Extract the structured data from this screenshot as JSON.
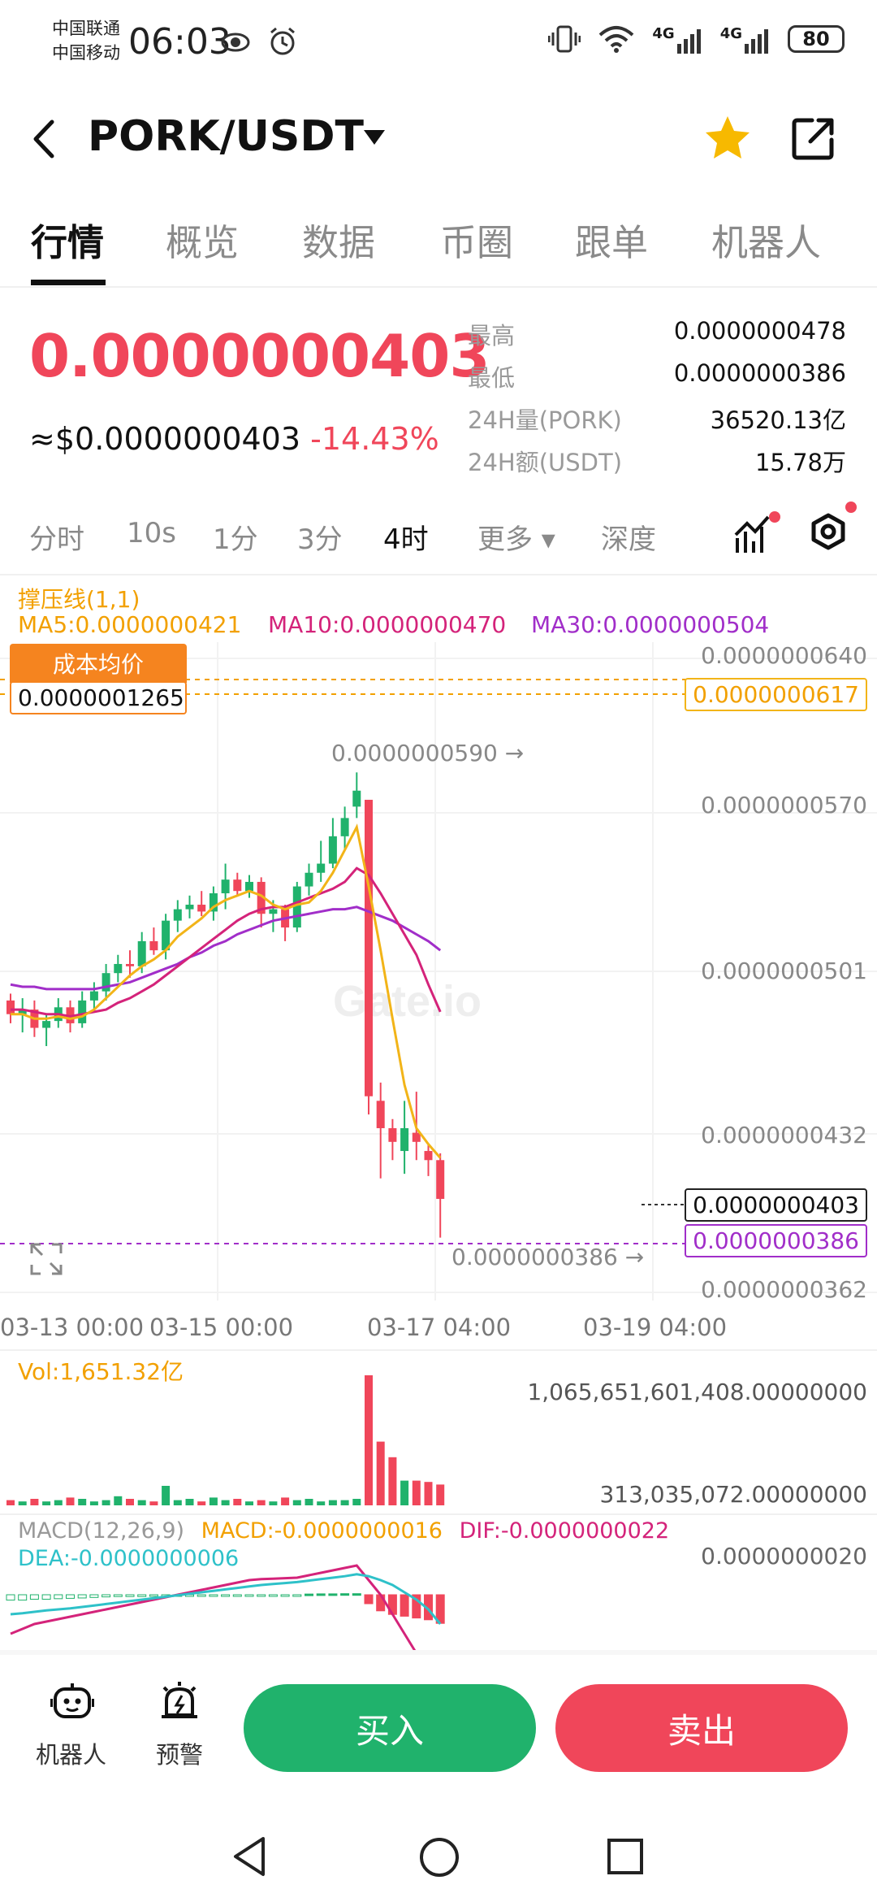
{
  "status_bar": {
    "carrier1": "中国联通",
    "carrier2": "中国移动",
    "time": "06:03",
    "battery": "80",
    "net1": "4G",
    "net2": "4G"
  },
  "header": {
    "title": "PORK/USDT",
    "icons": [
      "back-icon",
      "dropdown-caret-icon",
      "star-icon",
      "share-icon"
    ]
  },
  "tabs": [
    {
      "label": "行情",
      "active": true
    },
    {
      "label": "概览",
      "active": false
    },
    {
      "label": "数据",
      "active": false
    },
    {
      "label": "币圈",
      "active": false
    },
    {
      "label": "跟单",
      "active": false
    },
    {
      "label": "机器人",
      "active": false
    }
  ],
  "ticker": {
    "price": "0.0000000403",
    "usd_price": "≈$0.0000000403",
    "change": "-14.43%",
    "stats": [
      {
        "label": "最高",
        "value": "0.0000000478"
      },
      {
        "label": "最低",
        "value": "0.0000000386"
      },
      {
        "label": "24H量(PORK)",
        "value": "36520.13亿"
      },
      {
        "label": "24H额(USDT)",
        "value": "15.78万"
      }
    ]
  },
  "timeframes": [
    {
      "label": "分时",
      "active": false
    },
    {
      "label": "10s",
      "active": false
    },
    {
      "label": "1分",
      "active": false
    },
    {
      "label": "3分",
      "active": false
    },
    {
      "label": "4时",
      "active": true
    },
    {
      "label": "更多 ▾",
      "active": false
    },
    {
      "label": "深度",
      "active": false
    }
  ],
  "chart": {
    "indicator_title": "撑压线(1,1)",
    "ma5": "MA5:0.0000000421",
    "ma10": "MA10:0.0000000470",
    "ma30": "MA30:0.0000000504",
    "cost_label": "成本均价",
    "cost_value": "0.0000001265",
    "resistance_value": "0.0000000617",
    "current_value": "0.0000000403",
    "low_marker_value": "0.0000000386",
    "high_annotation": "0.0000000590 →",
    "low_annotation": "0.0000000386 →",
    "watermark": "Gate.io",
    "y_ticks": [
      "0.0000000640",
      "0.0000000570",
      "0.0000000501",
      "0.0000000432",
      "0.0000000362"
    ],
    "x_ticks": [
      "03-13 00:00",
      "03-15 00:00",
      "03-17 04:00",
      "03-19 04:00"
    ],
    "colors": {
      "up": "#20b26c",
      "down": "#f0465a",
      "ma5": "#f2b418",
      "ma10": "#d4237a",
      "ma30": "#a12ec9"
    }
  },
  "volume": {
    "label": "Vol:1,651.32亿",
    "top_value": "1,065,651,601,408.00000000",
    "bottom_value": "313,035,072.00000000"
  },
  "macd": {
    "title": "MACD(12,26,9)",
    "macd": "MACD:-0.0000000016",
    "dif": "DIF:-0.0000000022",
    "dea": "DEA:-0.0000000006",
    "axis_value": "0.0000000020"
  },
  "chart_data": {
    "type": "candlestick",
    "interval": "4时",
    "ohlc": [
      [
        4.9e-08,
        4.93e-08,
        4.8e-08,
        4.84e-08
      ],
      [
        4.84e-08,
        4.91e-08,
        4.76e-08,
        4.86e-08
      ],
      [
        4.86e-08,
        4.9e-08,
        4.74e-08,
        4.78e-08
      ],
      [
        4.78e-08,
        4.84e-08,
        4.7e-08,
        4.81e-08
      ],
      [
        4.81e-08,
        4.91e-08,
        4.78e-08,
        4.87e-08
      ],
      [
        4.87e-08,
        4.9e-08,
        4.76e-08,
        4.8e-08
      ],
      [
        4.8e-08,
        4.94e-08,
        4.78e-08,
        4.9e-08
      ],
      [
        4.9e-08,
        4.98e-08,
        4.85e-08,
        4.94e-08
      ],
      [
        4.94e-08,
        5.06e-08,
        4.9e-08,
        5.02e-08
      ],
      [
        5.02e-08,
        5.1e-08,
        4.98e-08,
        5.06e-08
      ],
      [
        5.06e-08,
        5.12e-08,
        5e-08,
        5.05e-08
      ],
      [
        5.05e-08,
        5.2e-08,
        5.02e-08,
        5.16e-08
      ],
      [
        5.16e-08,
        5.22e-08,
        5.1e-08,
        5.12e-08
      ],
      [
        5.12e-08,
        5.28e-08,
        5.08e-08,
        5.25e-08
      ],
      [
        5.25e-08,
        5.34e-08,
        5.2e-08,
        5.3e-08
      ],
      [
        5.3e-08,
        5.36e-08,
        5.26e-08,
        5.32e-08
      ],
      [
        5.32e-08,
        5.38e-08,
        5.27e-08,
        5.29e-08
      ],
      [
        5.29e-08,
        5.4e-08,
        5.25e-08,
        5.37e-08
      ],
      [
        5.37e-08,
        5.5e-08,
        5.3e-08,
        5.43e-08
      ],
      [
        5.43e-08,
        5.46e-08,
        5.36e-08,
        5.38e-08
      ],
      [
        5.38e-08,
        5.45e-08,
        5.35e-08,
        5.42e-08
      ],
      [
        5.42e-08,
        5.44e-08,
        5.22e-08,
        5.28e-08
      ],
      [
        5.28e-08,
        5.34e-08,
        5.2e-08,
        5.3e-08
      ],
      [
        5.3e-08,
        5.32e-08,
        5.16e-08,
        5.22e-08
      ],
      [
        5.22e-08,
        5.42e-08,
        5.2e-08,
        5.4e-08
      ],
      [
        5.4e-08,
        5.5e-08,
        5.36e-08,
        5.46e-08
      ],
      [
        5.46e-08,
        5.6e-08,
        5.42e-08,
        5.5e-08
      ],
      [
        5.5e-08,
        5.7e-08,
        5.48e-08,
        5.62e-08
      ],
      [
        5.62e-08,
        5.75e-08,
        5.56e-08,
        5.7e-08
      ],
      [
        5.75e-08,
        5.9e-08,
        5.7e-08,
        5.82e-08
      ],
      [
        5.78e-08,
        5.78e-08,
        4.4e-08,
        4.48e-08
      ],
      [
        4.46e-08,
        4.54e-08,
        4.12e-08,
        4.34e-08
      ],
      [
        4.34e-08,
        4.38e-08,
        4.2e-08,
        4.28e-08
      ],
      [
        4.24e-08,
        4.46e-08,
        4.14e-08,
        4.34e-08
      ],
      [
        4.32e-08,
        4.5e-08,
        4.2e-08,
        4.28e-08
      ],
      [
        4.24e-08,
        4.27e-08,
        4.13e-08,
        4.2e-08
      ],
      [
        4.2e-08,
        4.23e-08,
        3.86e-08,
        4.03e-08
      ]
    ],
    "ma5": [
      4.84e-08,
      4.84e-08,
      4.82e-08,
      4.82e-08,
      4.83e-08,
      4.82e-08,
      4.83e-08,
      4.86e-08,
      4.91e-08,
      4.96e-08,
      5.01e-08,
      5.05e-08,
      5.08e-08,
      5.12e-08,
      5.18e-08,
      5.22e-08,
      5.26e-08,
      5.31e-08,
      5.34e-08,
      5.36e-08,
      5.38e-08,
      5.36e-08,
      5.32e-08,
      5.3e-08,
      5.32e-08,
      5.33e-08,
      5.38e-08,
      5.46e-08,
      5.56e-08,
      5.66e-08,
      5.4e-08,
      5.12e-08,
      4.82e-08,
      4.53e-08,
      4.34e-08,
      4.27e-08,
      4.21e-08
    ],
    "ma10": [
      4.86e-08,
      4.86e-08,
      4.85e-08,
      4.84e-08,
      4.84e-08,
      4.83e-08,
      4.84e-08,
      4.85e-08,
      4.86e-08,
      4.89e-08,
      4.91e-08,
      4.94e-08,
      4.97e-08,
      5.01e-08,
      5.05e-08,
      5.09e-08,
      5.13e-08,
      5.17e-08,
      5.21e-08,
      5.25e-08,
      5.28e-08,
      5.3e-08,
      5.31e-08,
      5.31e-08,
      5.33e-08,
      5.35e-08,
      5.37e-08,
      5.39e-08,
      5.42e-08,
      5.48e-08,
      5.45e-08,
      5.37e-08,
      5.28e-08,
      5.19e-08,
      5.1e-08,
      4.97e-08,
      4.85e-08
    ],
    "ma30": [
      4.97e-08,
      4.96e-08,
      4.96e-08,
      4.95e-08,
      4.95e-08,
      4.95e-08,
      4.95e-08,
      4.95e-08,
      4.96e-08,
      4.97e-08,
      4.98e-08,
      5e-08,
      5.02e-08,
      5.04e-08,
      5.06e-08,
      5.09e-08,
      5.11e-08,
      5.14e-08,
      5.16e-08,
      5.19e-08,
      5.21e-08,
      5.23e-08,
      5.25e-08,
      5.26e-08,
      5.27e-08,
      5.28e-08,
      5.29e-08,
      5.3e-08,
      5.3e-08,
      5.31e-08,
      5.29e-08,
      5.27e-08,
      5.25e-08,
      5.22e-08,
      5.19e-08,
      5.16e-08,
      5.12e-08
    ],
    "volume": [
      4,
      3,
      5,
      3,
      4,
      6,
      5,
      3,
      4,
      7,
      5,
      4,
      3,
      15,
      4,
      5,
      3,
      6,
      4,
      5,
      3,
      4,
      3,
      6,
      4,
      5,
      3,
      4,
      4,
      5,
      100,
      49,
      37,
      19,
      19,
      18,
      16
    ],
    "macd_hist": [
      -0.3,
      -0.3,
      -0.25,
      -0.25,
      -0.22,
      -0.2,
      -0.18,
      -0.15,
      -0.12,
      -0.1,
      -0.1,
      -0.1,
      -0.08,
      -0.08,
      -0.06,
      -0.06,
      -0.05,
      -0.05,
      -0.04,
      -0.04,
      -0.03,
      -0.02,
      -0.02,
      -0.02,
      -0.03,
      0.04,
      0.05,
      0.05,
      0.06,
      0.06,
      -0.5,
      -0.9,
      -1.1,
      -1.2,
      -1.3,
      -1.4,
      -1.6
    ],
    "dif": [
      -0.8,
      -0.7,
      -0.6,
      -0.55,
      -0.5,
      -0.45,
      -0.4,
      -0.35,
      -0.3,
      -0.25,
      -0.2,
      -0.15,
      -0.1,
      -0.05,
      0.0,
      0.05,
      0.1,
      0.15,
      0.2,
      0.25,
      0.3,
      0.32,
      0.33,
      0.34,
      0.35,
      0.4,
      0.45,
      0.5,
      0.55,
      0.6,
      0.3,
      0.0,
      -0.4,
      -0.8,
      -1.2,
      -1.6,
      -2.2
    ],
    "dea": [
      -0.4,
      -0.38,
      -0.35,
      -0.32,
      -0.3,
      -0.28,
      -0.25,
      -0.22,
      -0.19,
      -0.16,
      -0.13,
      -0.1,
      -0.07,
      -0.04,
      -0.01,
      0.02,
      0.05,
      0.08,
      0.11,
      0.14,
      0.17,
      0.2,
      0.22,
      0.24,
      0.26,
      0.29,
      0.32,
      0.35,
      0.38,
      0.42,
      0.38,
      0.3,
      0.2,
      0.05,
      -0.1,
      -0.3,
      -0.6
    ]
  },
  "bottom": {
    "robot_label": "机器人",
    "alert_label": "预警",
    "buy_label": "买入",
    "sell_label": "卖出"
  }
}
